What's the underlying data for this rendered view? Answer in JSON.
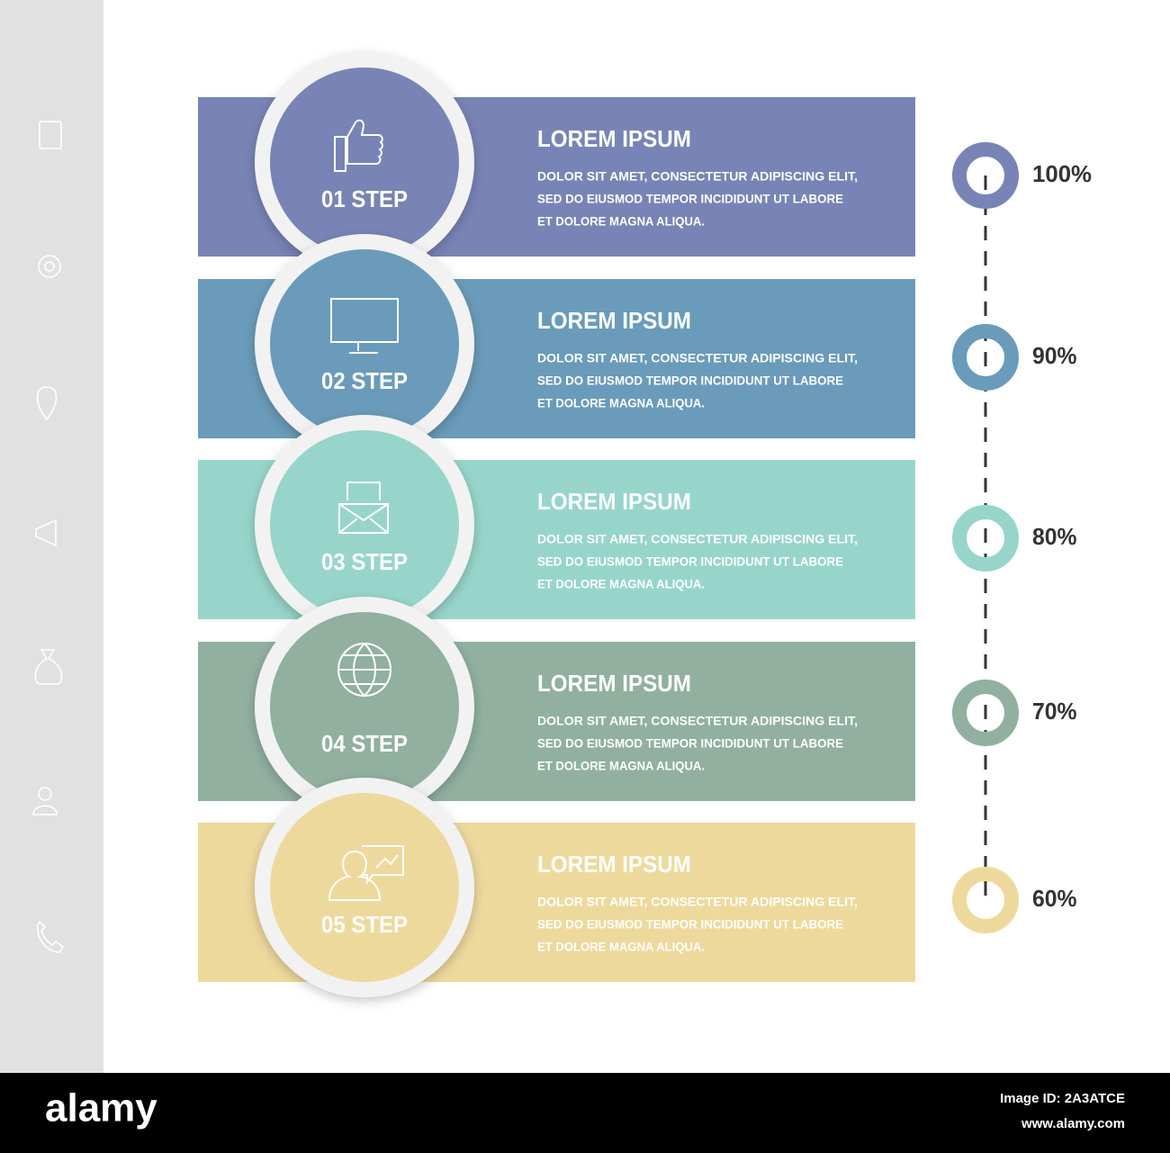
{
  "steps": [
    {
      "label": "01 STEP",
      "title": "LOREM IPSUM",
      "text": [
        "DOLOR SIT AMET, CONSECTETUR ADIPISCING ELIT,",
        "SED DO EIUSMOD TEMPOR INCIDIDUNT UT LABORE",
        "ET DOLORE MAGNA ALIQUA."
      ],
      "percent": "100%",
      "color": "#7884b5"
    },
    {
      "label": "02 STEP",
      "title": "LOREM IPSUM",
      "text": [
        "DOLOR SIT AMET, CONSECTETUR ADIPISCING ELIT,",
        "SED DO EIUSMOD TEMPOR INCIDIDUNT UT LABORE",
        "ET DOLORE MAGNA ALIQUA."
      ],
      "percent": "90%",
      "color": "#6a9bba"
    },
    {
      "label": "03 STEP",
      "title": "LOREM IPSUM",
      "text": [
        "DOLOR SIT AMET, CONSECTETUR ADIPISCING ELIT,",
        "SED DO EIUSMOD TEMPOR INCIDIDUNT UT LABORE",
        "ET DOLORE MAGNA ALIQUA."
      ],
      "percent": "80%",
      "color": "#97d5ca"
    },
    {
      "label": "04 STEP",
      "title": "LOREM IPSUM",
      "text": [
        "DOLOR SIT AMET, CONSECTETUR ADIPISCING ELIT,",
        "SED DO EIUSMOD TEMPOR INCIDIDUNT UT LABORE",
        "ET DOLORE MAGNA ALIQUA."
      ],
      "percent": "70%",
      "color": "#91b0a0"
    },
    {
      "label": "05 STEP",
      "title": "LOREM IPSUM",
      "text": [
        "DOLOR SIT AMET, CONSECTETUR ADIPISCING ELIT,",
        "SED DO EIUSMOD TEMPOR INCIDIDUNT UT LABORE",
        "ET DOLORE MAGNA ALIQUA."
      ],
      "percent": "60%",
      "color": "#eed99d"
    }
  ],
  "footer": {
    "logo": "alamy",
    "image_id": "Image ID: 2A3ATCE",
    "url": "www.alamy.com"
  }
}
